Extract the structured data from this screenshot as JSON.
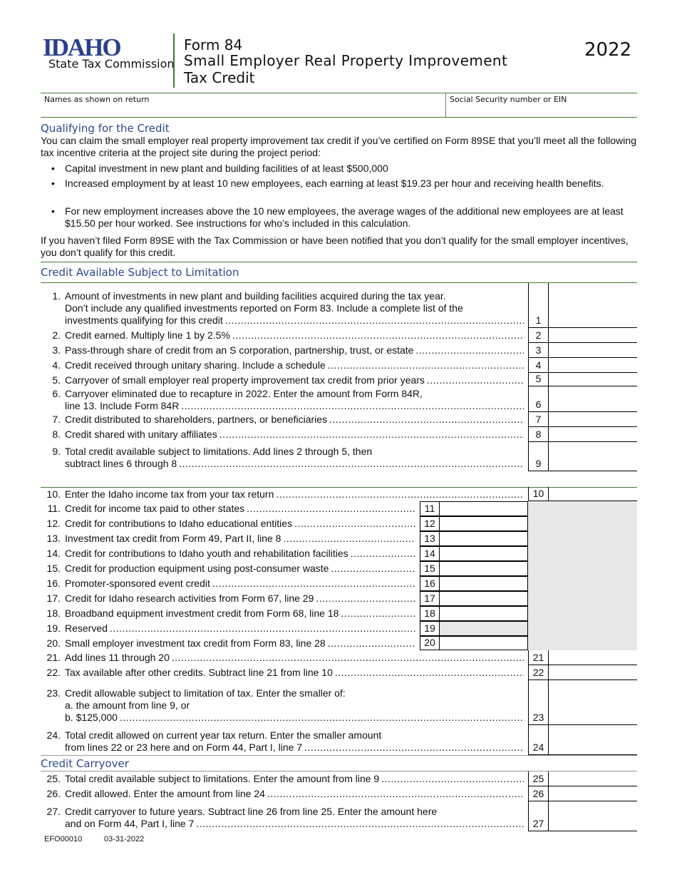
{
  "header": {
    "logo_text": "IDAHO",
    "agency": "State Tax Commission",
    "form_number": "Form 84",
    "title_line1": "Small Employer Real Property Improvement",
    "title_line2": "Tax Credit",
    "year": "2022"
  },
  "fields": {
    "names_label": "Names as shown on return",
    "ssn_label": "Social Security number or EIN"
  },
  "qualifying": {
    "heading": "Qualifying for the Credit",
    "intro": "You can claim the small employer real property improvement tax credit if you’ve certified on Form 89SE that you’ll meet all the following tax incentive criteria at the project site during the project period:",
    "bullets": [
      "Capital investment in new plant and building facilities of at least $500,000",
      "Increased employment by at least 10 new employees, each earning at least $19.23 per hour and receiving health benefits.",
      "For new employment increases above the 10 new employees, the average wages of the additional new employees are at least $15.50 per hour worked. See instructions for who’s included in this calculation."
    ],
    "closing": "If you haven’t filed Form 89SE with the Tax Commission or have been notified that you don’t qualify for the small employer incentives, you don’t qualify for this credit."
  },
  "section1_heading": "Credit Available Subject to Limitation",
  "section3_heading": "Credit Carryover",
  "lines": [
    {
      "n": "1.",
      "box": "1",
      "text": [
        "Amount of investments in new plant and building facilities acquired during the tax year.",
        "Don’t include any qualified investments reported on Form 83. Include a complete list of the",
        "investments qualifying for this credit"
      ]
    },
    {
      "n": "2.",
      "box": "2",
      "text": [
        "Credit earned. Multiply line 1 by 2.5%"
      ]
    },
    {
      "n": "3.",
      "box": "3",
      "text": [
        "Pass-through share of credit from an S corporation, partnership, trust, or estate"
      ]
    },
    {
      "n": "4.",
      "box": "4",
      "text": [
        "Credit received through unitary sharing. Include a schedule"
      ]
    },
    {
      "n": "5.",
      "box": "5",
      "text": [
        "Carryover of small employer real property improvement tax credit from prior years"
      ]
    },
    {
      "n": "6.",
      "box": "6",
      "text": [
        "Carryover eliminated due to recapture in 2022. Enter the amount from Form 84R,",
        "line 13. Include Form 84R"
      ]
    },
    {
      "n": "7.",
      "box": "7",
      "text": [
        "Credit distributed to shareholders, partners, or beneficiaries"
      ]
    },
    {
      "n": "8.",
      "box": "8",
      "text": [
        "Credit shared with unitary affiliates"
      ]
    },
    {
      "n": "9.",
      "box": "9",
      "text": [
        "Total credit available subject to limitations. Add lines 2 through 5, then",
        "subtract lines 6 through 8"
      ]
    },
    {
      "n": "10.",
      "box": "10",
      "text": [
        "Enter the Idaho income tax from your tax return"
      ]
    },
    {
      "n": "11.",
      "box": "11",
      "text": [
        "Credit for income tax paid to other states"
      ]
    },
    {
      "n": "12.",
      "box": "12",
      "text": [
        "Credit for contributions to Idaho educational entities"
      ]
    },
    {
      "n": "13.",
      "box": "13",
      "text": [
        "Investment tax credit from Form 49, Part II, line 8"
      ]
    },
    {
      "n": "14.",
      "box": "14",
      "text": [
        "Credit for contributions to Idaho youth and rehabilitation facilities"
      ]
    },
    {
      "n": "15.",
      "box": "15",
      "text": [
        "Credit for production equipment using post-consumer waste"
      ]
    },
    {
      "n": "16.",
      "box": "16",
      "text": [
        "Promoter-sponsored event credit"
      ]
    },
    {
      "n": "17.",
      "box": "17",
      "text": [
        "Credit for Idaho research activities from Form 67, line 29"
      ]
    },
    {
      "n": "18.",
      "box": "18",
      "text": [
        "Broadband equipment investment credit from Form 68, line 18"
      ]
    },
    {
      "n": "19.",
      "box": "19",
      "text": [
        "Reserved"
      ]
    },
    {
      "n": "20.",
      "box": "20",
      "text": [
        "Small employer investment tax credit from Form 83, line 28"
      ]
    },
    {
      "n": "21.",
      "box": "21",
      "text": [
        "Add lines 11 through 20"
      ]
    },
    {
      "n": "22.",
      "box": "22",
      "text": [
        "Tax available after other credits. Subtract line 21 from line 10"
      ]
    },
    {
      "n": "23.",
      "box": "23",
      "text": [
        "Credit allowable subject to limitation of tax. Enter the smaller of:",
        "a.  the amount from line 9, or",
        "b.  $125,000"
      ]
    },
    {
      "n": "24.",
      "box": "24",
      "text": [
        "Total credit allowed on current year tax return. Enter the smaller amount",
        "from lines 22 or 23 here and on Form 44, Part I, line 7"
      ]
    },
    {
      "n": "25.",
      "box": "25",
      "text": [
        "Total credit available subject to limitations. Enter the amount from line 9"
      ]
    },
    {
      "n": "26.",
      "box": "26",
      "text": [
        "Credit allowed. Enter the amount from line 24"
      ]
    },
    {
      "n": "27.",
      "box": "27",
      "text": [
        "Credit carryover to future years. Subtract line 26 from line 25. Enter the amount here",
        "and on Form 44, Part I, line 7"
      ]
    }
  ],
  "footer": {
    "code": "EFO00010",
    "date": "03-31-2022"
  },
  "colors": {
    "accent_green": "#3f7a35",
    "heading_blue": "#2b4a8c",
    "shade_grey": "#e6e7e9"
  }
}
